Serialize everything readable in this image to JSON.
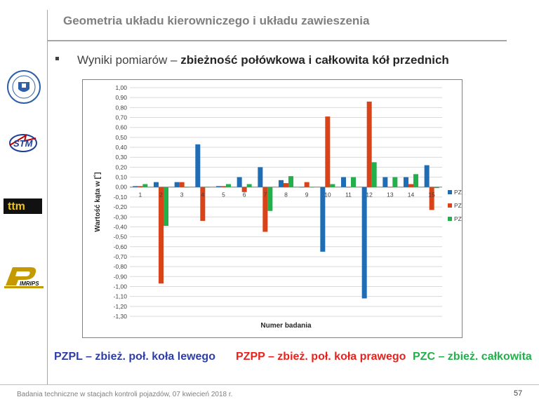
{
  "header": {
    "title": "Geometria układu kierowniczego i układu zawieszenia"
  },
  "bullet": {
    "prefix": "Wyniki pomiarów – ",
    "bold": "zbieżność połówkowa i całkowita kół przednich"
  },
  "logos": {
    "logo1": "university-seal-icon",
    "logo2": "stm-logo-icon",
    "logo3": "ttm-logo-icon",
    "logo4": "pimrips-logo-icon"
  },
  "chart_data": {
    "type": "bar",
    "categories": [
      "1",
      "2",
      "3",
      "4",
      "5",
      "6",
      "7",
      "8",
      "9",
      "10",
      "11",
      "12",
      "13",
      "14",
      "15"
    ],
    "series": [
      {
        "name": "PZPL",
        "color": "#1f6db5",
        "values": [
          0.01,
          0.05,
          0.05,
          0.43,
          0.01,
          0.1,
          0.2,
          0.07,
          0.0,
          -0.65,
          0.1,
          -1.12,
          0.1,
          0.1,
          0.22
        ]
      },
      {
        "name": "PZPP",
        "color": "#d9431a",
        "values": [
          0.01,
          -0.97,
          0.05,
          -0.34,
          0.01,
          -0.05,
          -0.45,
          0.04,
          0.05,
          0.71,
          0.0,
          0.86,
          0.0,
          0.03,
          -0.23
        ]
      },
      {
        "name": "PZC",
        "color": "#22b04b",
        "values": [
          0.03,
          -0.39,
          0.0,
          0.0,
          0.03,
          0.03,
          -0.24,
          0.11,
          0.0,
          0.03,
          0.1,
          0.25,
          0.1,
          0.13,
          -0.01
        ]
      }
    ],
    "xlabel": "Numer badania",
    "ylabel": "Wartość kąta w [˚]",
    "ylim": [
      -1.3,
      1.0
    ],
    "yticks": [
      "1,00",
      "0,90",
      "0,80",
      "0,70",
      "0,60",
      "0,50",
      "0,40",
      "0,30",
      "0,20",
      "0,10",
      "0,00",
      "-0,10",
      "-0,20",
      "-0,30",
      "-0,40",
      "-0,50",
      "-0,60",
      "-0,70",
      "-0,80",
      "-0,90",
      "-1,00",
      "-1,10",
      "-1,20",
      "-1,30"
    ],
    "grid": true,
    "legend_position": "right"
  },
  "legend_text": {
    "pzpl": "PZPL – zbież.  poł. koła lewego",
    "pzpp": "PZPP – zbież. poł. koła prawego",
    "pzc": "PZC – zbież. całkowita"
  },
  "footer": {
    "text": "Badania techniczne w stacjach kontroli pojazdów, 07 kwiecień 2018 r.",
    "page": "57"
  }
}
